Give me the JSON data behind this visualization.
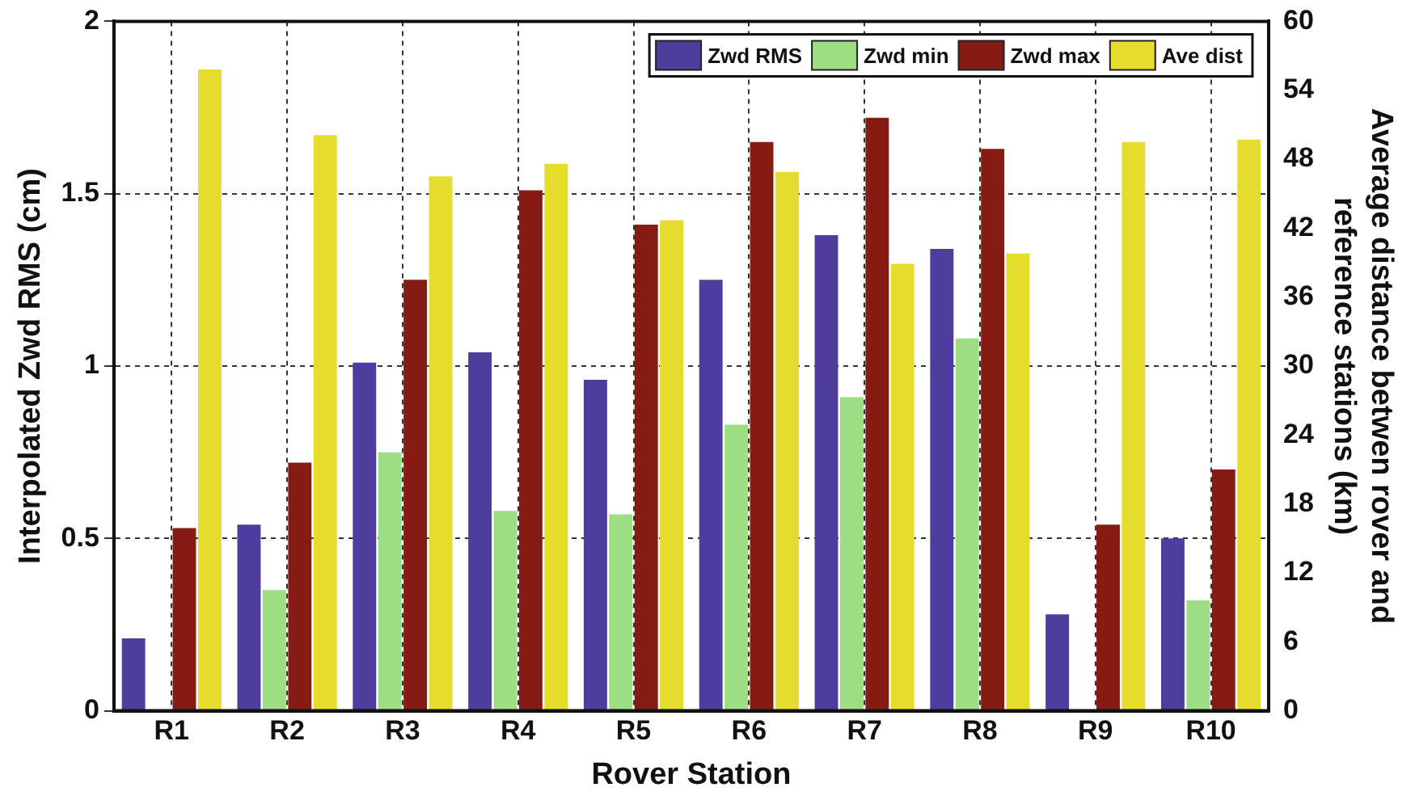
{
  "chart_data": {
    "type": "bar",
    "xlabel": "Rover Station",
    "ylabel": "Interpolated Zwd RMS (cm)",
    "y2label": "Average distance betwen rover and reference stations (km)",
    "categories": [
      "R1",
      "R2",
      "R3",
      "R4",
      "R5",
      "R6",
      "R7",
      "R8",
      "R9",
      "R10"
    ],
    "series": [
      {
        "name": "Zwd RMS",
        "color": "#4f3d9e",
        "values": [
          0.21,
          0.54,
          1.01,
          1.04,
          0.96,
          1.25,
          1.38,
          1.34,
          0.28,
          0.5
        ]
      },
      {
        "name": "Zwd min",
        "color": "#9ddd84",
        "values": [
          null,
          0.35,
          0.75,
          0.58,
          0.57,
          0.83,
          0.91,
          1.08,
          null,
          0.32
        ]
      },
      {
        "name": "Zwd max",
        "color": "#841c14",
        "values": [
          0.53,
          0.72,
          1.25,
          1.51,
          1.41,
          1.65,
          1.72,
          1.63,
          0.54,
          0.7
        ]
      },
      {
        "name": "Ave dist",
        "color": "#e6dc2c",
        "axis": "y2",
        "values": [
          55.8,
          50.1,
          46.5,
          47.6,
          42.7,
          46.9,
          38.9,
          39.8,
          49.5,
          49.7
        ]
      }
    ],
    "ylim": [
      0,
      2
    ],
    "yticks": [
      0,
      0.5,
      1,
      1.5,
      2
    ],
    "y2lim": [
      0,
      60
    ],
    "y2ticks": [
      0,
      6,
      12,
      18,
      24,
      30,
      36,
      42,
      48,
      54,
      60
    ],
    "grid": true,
    "legend": "top right"
  }
}
